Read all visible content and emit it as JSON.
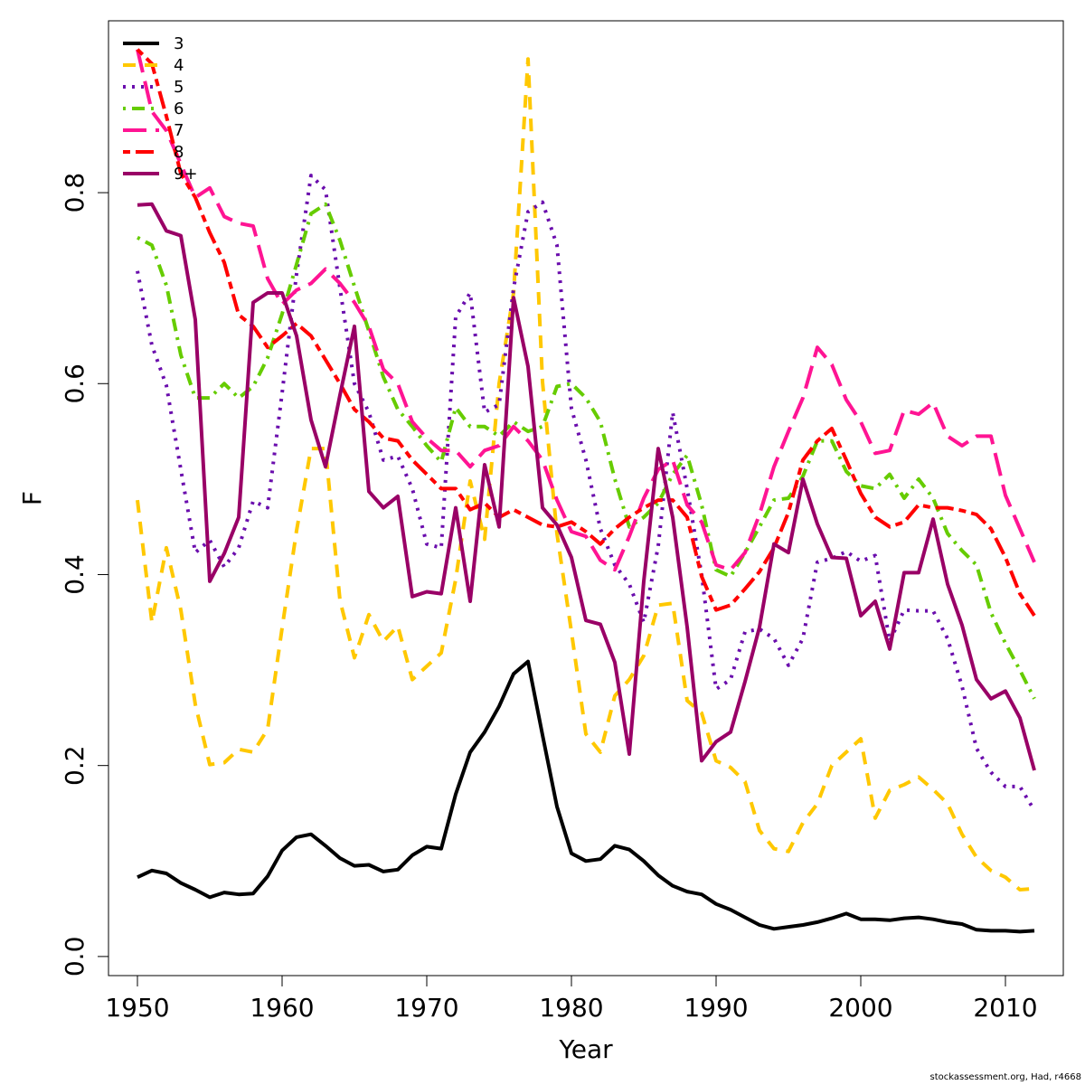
{
  "chart_data": {
    "type": "line",
    "title": "",
    "xlabel": "Year",
    "ylabel": "F",
    "xlim": [
      1948,
      2014
    ],
    "ylim": [
      -0.02,
      0.98
    ],
    "xticks": [
      1950,
      1960,
      1970,
      1980,
      1990,
      2000,
      2010
    ],
    "yticks": [
      0.0,
      0.2,
      0.4,
      0.6,
      0.8
    ],
    "ytick_labels": [
      "0.0",
      "0.2",
      "0.4",
      "0.6",
      "0.8"
    ],
    "legend_position": "top-left",
    "grid": false,
    "x": [
      1950,
      1951,
      1952,
      1953,
      1954,
      1955,
      1956,
      1957,
      1958,
      1959,
      1960,
      1961,
      1962,
      1963,
      1964,
      1965,
      1966,
      1967,
      1968,
      1969,
      1970,
      1971,
      1972,
      1973,
      1974,
      1975,
      1976,
      1977,
      1978,
      1979,
      1980,
      1981,
      1982,
      1983,
      1984,
      1985,
      1986,
      1987,
      1988,
      1989,
      1990,
      1991,
      1992,
      1993,
      1994,
      1995,
      1996,
      1997,
      1998,
      1999,
      2000,
      2001,
      2002,
      2003,
      2004,
      2005,
      2006,
      2007,
      2008,
      2009,
      2010,
      2011,
      2012
    ],
    "series": [
      {
        "name": "3",
        "color": "#000000",
        "dash": "solid",
        "values": [
          0.083,
          0.09,
          0.087,
          0.077,
          0.07,
          0.062,
          0.067,
          0.065,
          0.066,
          0.084,
          0.111,
          0.125,
          0.128,
          0.116,
          0.103,
          0.095,
          0.096,
          0.089,
          0.091,
          0.106,
          0.115,
          0.113,
          0.17,
          0.214,
          0.235,
          0.262,
          0.296,
          0.309,
          0.232,
          0.157,
          0.108,
          0.1,
          0.102,
          0.116,
          0.112,
          0.1,
          0.085,
          0.074,
          0.068,
          0.065,
          0.055,
          0.049,
          0.041,
          0.033,
          0.029,
          0.031,
          0.033,
          0.036,
          0.04,
          0.045,
          0.039,
          0.039,
          0.038,
          0.04,
          0.041,
          0.039,
          0.036,
          0.034,
          0.028,
          0.027,
          0.027,
          0.026,
          0.027
        ]
      },
      {
        "name": "4",
        "color": "#ffc800",
        "dash": "dashed",
        "values": [
          0.478,
          0.35,
          0.428,
          0.363,
          0.264,
          0.201,
          0.203,
          0.217,
          0.214,
          0.238,
          0.344,
          0.446,
          0.532,
          0.532,
          0.373,
          0.313,
          0.358,
          0.33,
          0.346,
          0.29,
          0.304,
          0.318,
          0.395,
          0.498,
          0.437,
          0.6,
          0.695,
          0.94,
          0.602,
          0.443,
          0.34,
          0.233,
          0.214,
          0.273,
          0.29,
          0.315,
          0.368,
          0.37,
          0.268,
          0.255,
          0.205,
          0.198,
          0.183,
          0.132,
          0.113,
          0.11,
          0.14,
          0.16,
          0.2,
          0.214,
          0.228,
          0.145,
          0.174,
          0.18,
          0.188,
          0.175,
          0.16,
          0.128,
          0.104,
          0.09,
          0.083,
          0.07,
          0.071
        ]
      },
      {
        "name": "5",
        "color": "#6a0dad",
        "dash": "dotted",
        "values": [
          0.718,
          0.64,
          0.598,
          0.51,
          0.423,
          0.436,
          0.408,
          0.428,
          0.477,
          0.47,
          0.59,
          0.715,
          0.818,
          0.803,
          0.7,
          0.6,
          0.57,
          0.52,
          0.524,
          0.49,
          0.432,
          0.428,
          0.67,
          0.695,
          0.57,
          0.578,
          0.7,
          0.78,
          0.79,
          0.745,
          0.574,
          0.52,
          0.448,
          0.41,
          0.39,
          0.35,
          0.43,
          0.57,
          0.49,
          0.4,
          0.28,
          0.29,
          0.34,
          0.343,
          0.333,
          0.305,
          0.333,
          0.413,
          0.417,
          0.424,
          0.414,
          0.42,
          0.33,
          0.363,
          0.362,
          0.362,
          0.333,
          0.283,
          0.218,
          0.193,
          0.178,
          0.178,
          0.153
        ]
      },
      {
        "name": "6",
        "color": "#66cc00",
        "dash": "dotdash",
        "values": [
          0.753,
          0.745,
          0.703,
          0.63,
          0.585,
          0.585,
          0.6,
          0.585,
          0.597,
          0.627,
          0.673,
          0.725,
          0.778,
          0.788,
          0.75,
          0.702,
          0.655,
          0.607,
          0.573,
          0.555,
          0.535,
          0.518,
          0.575,
          0.555,
          0.555,
          0.545,
          0.56,
          0.55,
          0.555,
          0.597,
          0.6,
          0.585,
          0.56,
          0.5,
          0.45,
          0.46,
          0.475,
          0.505,
          0.525,
          0.473,
          0.405,
          0.398,
          0.423,
          0.45,
          0.478,
          0.48,
          0.503,
          0.54,
          0.54,
          0.508,
          0.493,
          0.49,
          0.505,
          0.48,
          0.5,
          0.48,
          0.443,
          0.425,
          0.41,
          0.36,
          0.328,
          0.3,
          0.27
        ]
      },
      {
        "name": "7",
        "color": "#ff1493",
        "dash": "longdash",
        "values": [
          0.95,
          0.885,
          0.865,
          0.83,
          0.795,
          0.805,
          0.775,
          0.768,
          0.765,
          0.71,
          0.683,
          0.698,
          0.705,
          0.72,
          0.705,
          0.685,
          0.66,
          0.615,
          0.6,
          0.56,
          0.543,
          0.53,
          0.53,
          0.513,
          0.53,
          0.535,
          0.555,
          0.54,
          0.52,
          0.478,
          0.445,
          0.44,
          0.415,
          0.405,
          0.44,
          0.48,
          0.51,
          0.52,
          0.473,
          0.455,
          0.41,
          0.405,
          0.423,
          0.463,
          0.513,
          0.55,
          0.585,
          0.638,
          0.62,
          0.583,
          0.56,
          0.527,
          0.53,
          0.572,
          0.568,
          0.58,
          0.545,
          0.535,
          0.545,
          0.545,
          0.483,
          0.448,
          0.413
        ]
      },
      {
        "name": "8",
        "color": "#ff0000",
        "dash": "twodash",
        "values": [
          0.95,
          0.935,
          0.88,
          0.82,
          0.795,
          0.758,
          0.727,
          0.672,
          0.66,
          0.638,
          0.65,
          0.663,
          0.65,
          0.625,
          0.6,
          0.573,
          0.56,
          0.543,
          0.54,
          0.52,
          0.505,
          0.49,
          0.49,
          0.468,
          0.475,
          0.46,
          0.468,
          0.46,
          0.452,
          0.45,
          0.455,
          0.445,
          0.432,
          0.448,
          0.46,
          0.47,
          0.478,
          0.478,
          0.46,
          0.398,
          0.363,
          0.368,
          0.385,
          0.403,
          0.428,
          0.465,
          0.52,
          0.54,
          0.553,
          0.52,
          0.485,
          0.46,
          0.45,
          0.455,
          0.473,
          0.47,
          0.47,
          0.467,
          0.463,
          0.448,
          0.418,
          0.38,
          0.357
        ]
      },
      {
        "name": "9+",
        "color": "#990066",
        "dash": "solid",
        "values": [
          0.787,
          0.788,
          0.76,
          0.755,
          0.667,
          0.393,
          0.422,
          0.46,
          0.685,
          0.695,
          0.695,
          0.65,
          0.562,
          0.513,
          0.588,
          0.66,
          0.487,
          0.47,
          0.482,
          0.377,
          0.382,
          0.38,
          0.47,
          0.372,
          0.515,
          0.45,
          0.69,
          0.618,
          0.47,
          0.452,
          0.418,
          0.352,
          0.348,
          0.308,
          0.212,
          0.393,
          0.532,
          0.46,
          0.345,
          0.205,
          0.225,
          0.235,
          0.288,
          0.345,
          0.432,
          0.423,
          0.5,
          0.453,
          0.418,
          0.417,
          0.357,
          0.372,
          0.322,
          0.402,
          0.402,
          0.458,
          0.39,
          0.347,
          0.29,
          0.27,
          0.278,
          0.25,
          0.195
        ]
      }
    ]
  },
  "credit": "stockassessment.org, Had, r4668"
}
